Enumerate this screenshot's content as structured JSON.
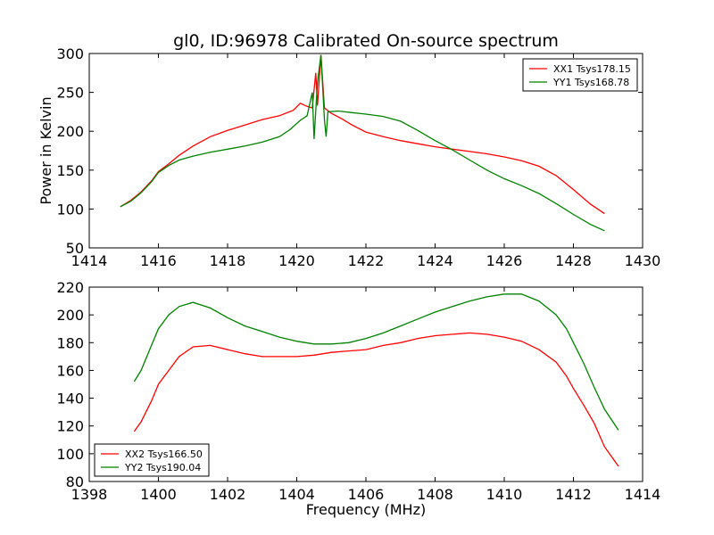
{
  "figure": {
    "title": "gl0, ID:96978 Calibrated On-source spectrum"
  },
  "chart_data": [
    {
      "type": "line",
      "title": "gl0, ID:96978 Calibrated On-source spectrum",
      "xlabel": "",
      "ylabel": "Power in Kelvin",
      "xlim": [
        1414,
        1430
      ],
      "ylim": [
        50,
        300
      ],
      "xticks": [
        1414,
        1416,
        1418,
        1420,
        1422,
        1424,
        1426,
        1428,
        1430
      ],
      "yticks": [
        50,
        100,
        150,
        200,
        250,
        300
      ],
      "grid": false,
      "legend": "top-right",
      "series": [
        {
          "name": "XX1 Tsys178.15",
          "color": "#ff0000",
          "points": [
            [
              1414.9,
              103
            ],
            [
              1415.2,
              111
            ],
            [
              1415.5,
              122
            ],
            [
              1415.8,
              136
            ],
            [
              1416.0,
              148
            ],
            [
              1416.3,
              158
            ],
            [
              1416.6,
              169
            ],
            [
              1417.0,
              181
            ],
            [
              1417.5,
              193
            ],
            [
              1418.0,
              201
            ],
            [
              1418.5,
              208
            ],
            [
              1419.0,
              215
            ],
            [
              1419.5,
              220
            ],
            [
              1419.9,
              227
            ],
            [
              1420.1,
              236
            ],
            [
              1420.3,
              232
            ],
            [
              1420.45,
              230
            ],
            [
              1420.55,
              275
            ],
            [
              1420.6,
              233
            ],
            [
              1420.7,
              298
            ],
            [
              1420.8,
              230
            ],
            [
              1421.0,
              223
            ],
            [
              1421.3,
              216
            ],
            [
              1421.6,
              208
            ],
            [
              1422.0,
              199
            ],
            [
              1422.5,
              193
            ],
            [
              1423.0,
              188
            ],
            [
              1423.5,
              184
            ],
            [
              1424.0,
              180
            ],
            [
              1424.5,
              177
            ],
            [
              1425.0,
              174
            ],
            [
              1425.5,
              171
            ],
            [
              1426.0,
              167
            ],
            [
              1426.5,
              162
            ],
            [
              1427.0,
              155
            ],
            [
              1427.5,
              143
            ],
            [
              1428.0,
              125
            ],
            [
              1428.5,
              106
            ],
            [
              1428.9,
              94
            ]
          ]
        },
        {
          "name": "YY1 Tsys168.78",
          "color": "#008000",
          "points": [
            [
              1414.9,
              103
            ],
            [
              1415.2,
              110
            ],
            [
              1415.5,
              121
            ],
            [
              1415.8,
              135
            ],
            [
              1416.0,
              147
            ],
            [
              1416.3,
              156
            ],
            [
              1416.6,
              163
            ],
            [
              1417.0,
              168
            ],
            [
              1417.5,
              173
            ],
            [
              1418.0,
              177
            ],
            [
              1418.5,
              181
            ],
            [
              1419.0,
              186
            ],
            [
              1419.5,
              193
            ],
            [
              1419.8,
              202
            ],
            [
              1420.1,
              214
            ],
            [
              1420.3,
              220
            ],
            [
              1420.45,
              250
            ],
            [
              1420.5,
              190
            ],
            [
              1420.6,
              263
            ],
            [
              1420.7,
              298
            ],
            [
              1420.8,
              215
            ],
            [
              1420.85,
              193
            ],
            [
              1420.9,
              225
            ],
            [
              1421.2,
              226
            ],
            [
              1421.6,
              224
            ],
            [
              1422.0,
              222
            ],
            [
              1422.5,
              219
            ],
            [
              1423.0,
              213
            ],
            [
              1423.5,
              201
            ],
            [
              1424.0,
              188
            ],
            [
              1424.5,
              176
            ],
            [
              1425.0,
              163
            ],
            [
              1425.5,
              150
            ],
            [
              1426.0,
              139
            ],
            [
              1426.5,
              130
            ],
            [
              1427.0,
              120
            ],
            [
              1427.5,
              107
            ],
            [
              1428.0,
              93
            ],
            [
              1428.5,
              80
            ],
            [
              1428.9,
              72
            ]
          ]
        }
      ]
    },
    {
      "type": "line",
      "title": "",
      "xlabel": "Frequency (MHz)",
      "ylabel": "",
      "xlim": [
        1398,
        1414
      ],
      "ylim": [
        80,
        220
      ],
      "xticks": [
        1398,
        1400,
        1402,
        1404,
        1406,
        1408,
        1410,
        1412,
        1414
      ],
      "yticks": [
        80,
        100,
        120,
        140,
        160,
        180,
        200,
        220
      ],
      "grid": false,
      "legend": "bottom-left",
      "series": [
        {
          "name": "XX2 Tsys166.50",
          "color": "#ff0000",
          "points": [
            [
              1399.3,
              116
            ],
            [
              1399.5,
              123
            ],
            [
              1399.8,
              138
            ],
            [
              1400.0,
              150
            ],
            [
              1400.3,
              160
            ],
            [
              1400.6,
              170
            ],
            [
              1401.0,
              177
            ],
            [
              1401.5,
              178
            ],
            [
              1402.0,
              175
            ],
            [
              1402.5,
              172
            ],
            [
              1403.0,
              170
            ],
            [
              1403.5,
              170
            ],
            [
              1404.0,
              170
            ],
            [
              1404.5,
              171
            ],
            [
              1405.0,
              173
            ],
            [
              1405.5,
              174
            ],
            [
              1406.0,
              175
            ],
            [
              1406.5,
              178
            ],
            [
              1407.0,
              180
            ],
            [
              1407.5,
              183
            ],
            [
              1408.0,
              185
            ],
            [
              1408.5,
              186
            ],
            [
              1409.0,
              187
            ],
            [
              1409.5,
              186
            ],
            [
              1410.0,
              184
            ],
            [
              1410.5,
              181
            ],
            [
              1411.0,
              175
            ],
            [
              1411.5,
              166
            ],
            [
              1411.8,
              156
            ],
            [
              1412.0,
              147
            ],
            [
              1412.3,
              135
            ],
            [
              1412.6,
              122
            ],
            [
              1412.9,
              105
            ],
            [
              1413.3,
              91
            ]
          ]
        },
        {
          "name": "YY2 Tsys190.04",
          "color": "#008000",
          "points": [
            [
              1399.3,
              152
            ],
            [
              1399.5,
              160
            ],
            [
              1399.8,
              178
            ],
            [
              1400.0,
              190
            ],
            [
              1400.3,
              200
            ],
            [
              1400.6,
              206
            ],
            [
              1401.0,
              209
            ],
            [
              1401.5,
              205
            ],
            [
              1402.0,
              198
            ],
            [
              1402.5,
              192
            ],
            [
              1403.0,
              188
            ],
            [
              1403.5,
              184
            ],
            [
              1404.0,
              181
            ],
            [
              1404.5,
              179
            ],
            [
              1405.0,
              179
            ],
            [
              1405.5,
              180
            ],
            [
              1406.0,
              183
            ],
            [
              1406.5,
              187
            ],
            [
              1407.0,
              192
            ],
            [
              1407.5,
              197
            ],
            [
              1408.0,
              202
            ],
            [
              1408.5,
              206
            ],
            [
              1409.0,
              210
            ],
            [
              1409.5,
              213
            ],
            [
              1410.0,
              215
            ],
            [
              1410.5,
              215
            ],
            [
              1411.0,
              210
            ],
            [
              1411.5,
              200
            ],
            [
              1411.8,
              190
            ],
            [
              1412.0,
              180
            ],
            [
              1412.3,
              165
            ],
            [
              1412.6,
              148
            ],
            [
              1412.9,
              132
            ],
            [
              1413.3,
              117
            ]
          ]
        }
      ]
    }
  ]
}
